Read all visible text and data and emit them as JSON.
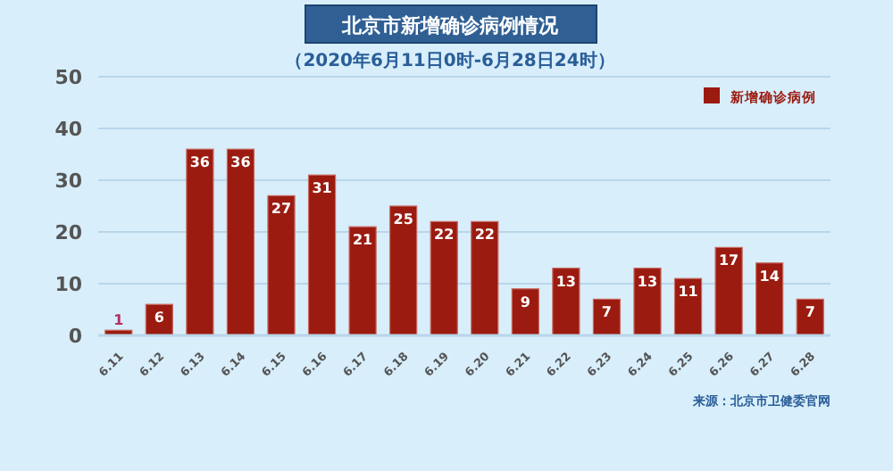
{
  "chart_data": {
    "type": "bar",
    "title": "北京市新增确诊病例情况",
    "subtitle": "（2020年6月11日0时-6月28日24时）",
    "categories": [
      "6.11",
      "6.12",
      "6.13",
      "6.14",
      "6.15",
      "6.16",
      "6.17",
      "6.18",
      "6.19",
      "6.20",
      "6.21",
      "6.22",
      "6.23",
      "6.24",
      "6.25",
      "6.26",
      "6.27",
      "6.28"
    ],
    "series": [
      {
        "name": "新增确诊病例",
        "color": "#9b1b10",
        "values": [
          1,
          6,
          36,
          36,
          27,
          31,
          21,
          25,
          22,
          22,
          9,
          13,
          7,
          13,
          11,
          17,
          14,
          7
        ]
      }
    ],
    "ylim": [
      0,
      50
    ],
    "yticks": [
      0,
      10,
      20,
      30,
      40,
      50
    ],
    "grid": "y",
    "legend": "top right",
    "data_labels": true,
    "annotations": [
      "来源：北京市卫健委官网"
    ]
  }
}
